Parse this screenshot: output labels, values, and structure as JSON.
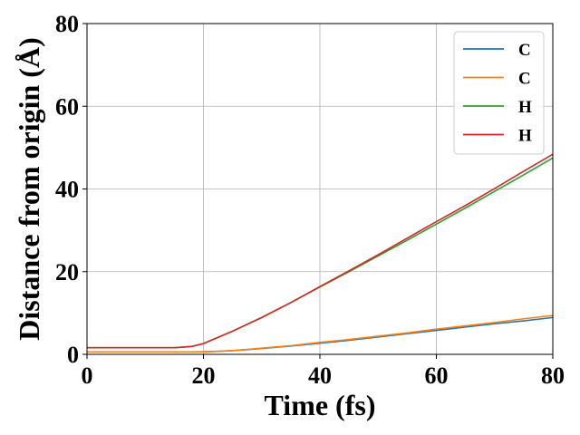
{
  "chart_data": {
    "type": "line",
    "title": "",
    "xlabel": "Time (fs)",
    "ylabel": "Distance from origin (Å)",
    "xlim": [
      0,
      80
    ],
    "ylim": [
      0,
      80
    ],
    "xticks": [
      0,
      20,
      40,
      60,
      80
    ],
    "yticks": [
      0,
      20,
      40,
      60,
      80
    ],
    "grid": true,
    "legend_position": "top-right",
    "x": [
      0,
      5,
      10,
      15,
      18,
      20,
      22,
      25,
      30,
      35,
      40,
      45,
      50,
      55,
      60,
      65,
      70,
      75,
      80
    ],
    "series": [
      {
        "name": "C",
        "color": "#1f77b4",
        "values": [
          0.6,
          0.6,
          0.6,
          0.6,
          0.6,
          0.62,
          0.7,
          0.9,
          1.4,
          2.0,
          2.7,
          3.4,
          4.2,
          5.0,
          5.8,
          6.6,
          7.4,
          8.1,
          8.9
        ]
      },
      {
        "name": "C",
        "color": "#ff7f0e",
        "values": [
          0.6,
          0.6,
          0.6,
          0.6,
          0.6,
          0.62,
          0.7,
          0.9,
          1.5,
          2.1,
          2.9,
          3.6,
          4.4,
          5.2,
          6.1,
          6.9,
          7.7,
          8.6,
          9.4
        ]
      },
      {
        "name": "H",
        "color": "#2ca02c",
        "values": [
          1.6,
          1.6,
          1.6,
          1.6,
          1.9,
          2.6,
          3.8,
          5.6,
          8.9,
          12.5,
          16.3,
          20.0,
          23.8,
          27.6,
          31.5,
          35.4,
          39.4,
          43.4,
          47.5
        ]
      },
      {
        "name": "H",
        "color": "#d62728",
        "values": [
          1.6,
          1.6,
          1.6,
          1.6,
          1.9,
          2.6,
          3.8,
          5.6,
          8.9,
          12.5,
          16.4,
          20.2,
          24.1,
          28.1,
          32.1,
          36.0,
          40.1,
          44.3,
          48.4
        ]
      }
    ]
  }
}
